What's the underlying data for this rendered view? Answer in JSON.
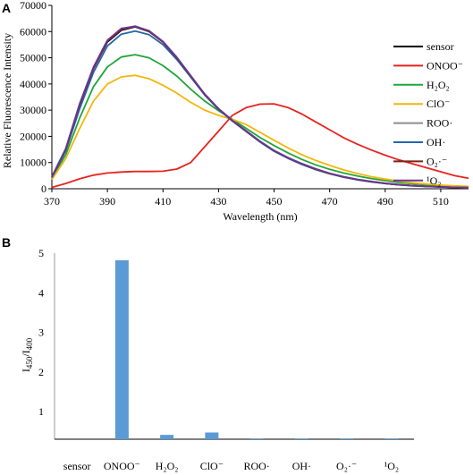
{
  "panels": {
    "a": {
      "letter": "A"
    },
    "b": {
      "letter": "B"
    }
  },
  "chart_data": [
    {
      "id": "a",
      "type": "line",
      "title": "",
      "xlabel": "Wavelength (nm)",
      "ylabel": "Relative Fluorescence Intensity",
      "xlim": [
        370,
        520
      ],
      "ylim": [
        0,
        70000
      ],
      "x_ticks": [
        370,
        390,
        410,
        430,
        450,
        470,
        490,
        510
      ],
      "y_ticks": [
        0,
        10000,
        20000,
        30000,
        40000,
        50000,
        60000,
        70000
      ],
      "grid": false,
      "legend": "right",
      "x": [
        370,
        375,
        380,
        385,
        390,
        395,
        400,
        405,
        410,
        415,
        420,
        425,
        430,
        435,
        440,
        445,
        450,
        455,
        460,
        465,
        470,
        475,
        480,
        485,
        490,
        495,
        500,
        505,
        510,
        515,
        520
      ],
      "series": [
        {
          "name": "sensor",
          "color": "#000000",
          "values": [
            4500,
            15000,
            32000,
            46000,
            56000,
            60500,
            61800,
            60000,
            56000,
            50000,
            43000,
            36000,
            30500,
            26000,
            22000,
            18000,
            14500,
            11800,
            9500,
            7500,
            5800,
            4500,
            3500,
            2700,
            2000,
            1500,
            1200,
            900,
            700,
            500,
            400
          ]
        },
        {
          "name": "ONOO⁻",
          "color": "#e8231f",
          "values": [
            500,
            2000,
            3800,
            5200,
            6000,
            6400,
            6600,
            6600,
            6700,
            7500,
            10000,
            16000,
            22000,
            28000,
            31000,
            32300,
            32400,
            31000,
            28500,
            25500,
            22500,
            19500,
            17000,
            14800,
            12800,
            11000,
            9500,
            8000,
            6500,
            5000,
            4000
          ]
        },
        {
          "name": "H₂O₂",
          "color": "#21a539",
          "values": [
            4000,
            13000,
            27000,
            39000,
            46500,
            50300,
            51200,
            50000,
            47000,
            43000,
            38000,
            33500,
            29800,
            26500,
            23000,
            19500,
            16500,
            13700,
            11200,
            9100,
            7400,
            6000,
            4900,
            3900,
            3100,
            2400,
            1900,
            1500,
            1200,
            1000,
            800
          ]
        },
        {
          "name": "ClO⁻",
          "color": "#f2b70a",
          "values": [
            3500,
            11500,
            23000,
            33500,
            40000,
            42700,
            43300,
            42000,
            39500,
            36500,
            33000,
            30000,
            28000,
            26500,
            24500,
            21500,
            18500,
            15600,
            13000,
            10800,
            8900,
            7200,
            5800,
            4600,
            3700,
            2900,
            2300,
            1800,
            1400,
            1100,
            900
          ]
        },
        {
          "name": "ROO·",
          "color": "#8c8c8c",
          "values": [
            4500,
            15200,
            32300,
            46300,
            56500,
            61000,
            62100,
            60200,
            56000,
            50000,
            43000,
            36000,
            30500,
            26000,
            22000,
            18000,
            14500,
            11800,
            9500,
            7500,
            5800,
            4500,
            3500,
            2700,
            2000,
            1500,
            1200,
            900,
            700,
            500,
            400
          ]
        },
        {
          "name": "OH·",
          "color": "#2467aa",
          "values": [
            4300,
            14500,
            30500,
            44500,
            54500,
            59000,
            60200,
            58800,
            55000,
            49300,
            42600,
            35800,
            30300,
            25800,
            21800,
            17800,
            14300,
            11600,
            9300,
            7300,
            5700,
            4400,
            3400,
            2600,
            2000,
            1500,
            1100,
            850,
            650,
            500,
            400
          ]
        },
        {
          "name": "O₂·⁻",
          "color": "#7b2316",
          "values": [
            4500,
            15100,
            32100,
            46100,
            56300,
            60800,
            61900,
            60100,
            56000,
            50000,
            43000,
            36000,
            30500,
            26000,
            22000,
            18000,
            14500,
            11800,
            9500,
            7500,
            5800,
            4500,
            3500,
            2700,
            2000,
            1500,
            1200,
            900,
            700,
            500,
            400
          ]
        },
        {
          "name": "¹O₂",
          "color": "#6a3796",
          "values": [
            4600,
            15300,
            32500,
            46500,
            56700,
            61200,
            62000,
            60300,
            56200,
            50200,
            43200,
            36200,
            30600,
            26100,
            22100,
            18100,
            14600,
            11900,
            9600,
            7600,
            5900,
            4600,
            3600,
            2800,
            2100,
            1600,
            1200,
            900,
            700,
            500,
            400
          ]
        }
      ]
    },
    {
      "id": "b",
      "type": "bar",
      "title": "",
      "xlabel": "",
      "ylabel": "I450/I400",
      "ylabel_parts": {
        "base": "I",
        "sub1": "450",
        "slash": "/I",
        "sub2": "400"
      },
      "ylim": [
        0,
        5
      ],
      "baseline": 0.3,
      "y_ticks": [
        1,
        2,
        3,
        4,
        5
      ],
      "grid": false,
      "color": "#5b9bd5",
      "categories": [
        "sensor",
        "ONOO⁻",
        "H₂O₂",
        "ClO⁻",
        "ROO·",
        "OH·",
        "O₂·⁻",
        "¹O₂"
      ],
      "values": [
        0.3,
        4.82,
        0.41,
        0.47,
        0.32,
        0.32,
        0.32,
        0.32
      ]
    }
  ]
}
